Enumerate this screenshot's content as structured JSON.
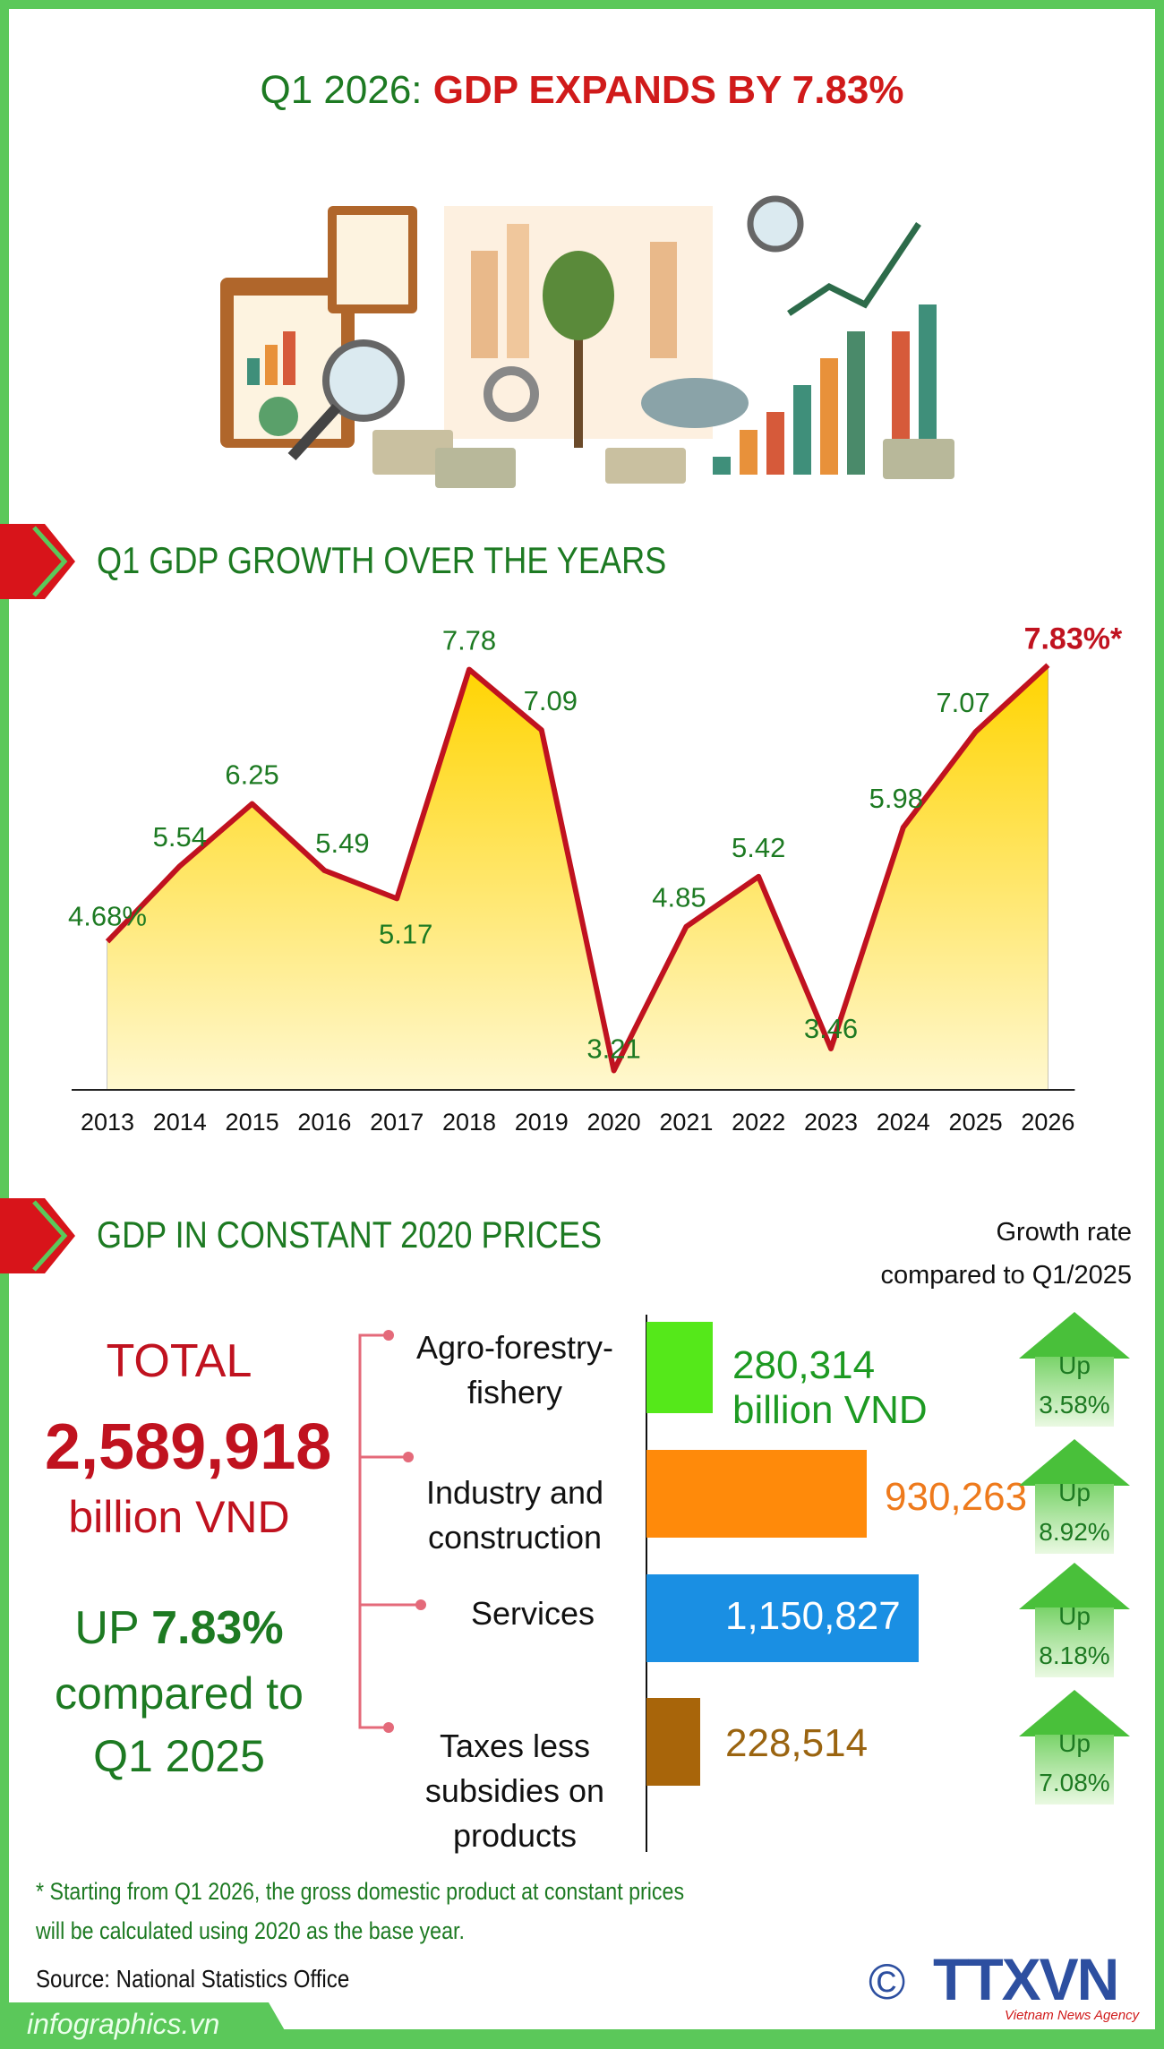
{
  "header": {
    "title_prefix": "Q1 2026: ",
    "title_main": "GDP EXPANDS BY 7.83%"
  },
  "section1": {
    "title": "Q1 GDP GROWTH OVER THE YEARS"
  },
  "chart_data": {
    "type": "area",
    "title": "Q1 GDP GROWTH OVER THE YEARS",
    "categories": [
      "2013",
      "2014",
      "2015",
      "2016",
      "2017",
      "2018",
      "2019",
      "2020",
      "2021",
      "2022",
      "2023",
      "2024",
      "2025",
      "2026"
    ],
    "values": [
      4.68,
      5.54,
      6.25,
      5.49,
      5.17,
      7.78,
      7.09,
      3.21,
      4.85,
      5.42,
      3.46,
      5.98,
      7.07,
      7.83
    ],
    "data_labels": [
      "4.68%",
      "5.54",
      "6.25",
      "5.49",
      "5.17",
      "7.78",
      "7.09",
      "3.21",
      "4.85",
      "5.42",
      "3.46",
      "5.98",
      "7.07",
      "7.83%*"
    ],
    "unit": "%",
    "grid": false,
    "line_color": "#c0121f",
    "fill_colors": [
      "#ffd400",
      "#fff6c0"
    ]
  },
  "section2": {
    "title": "GDP IN CONSTANT 2020 PRICES",
    "growth_header_1": "Growth rate",
    "growth_header_2": "compared to Q1/2025",
    "total_label": "TOTAL",
    "total_value": "2,589,918",
    "total_unit": "billion VND",
    "up_prefix": "UP ",
    "up_value": "7.83%",
    "compared_1": "compared to",
    "compared_2": "Q1 2025",
    "sectors": [
      {
        "label_1": "Agro-forestry-",
        "label_2": "fishery",
        "value": "280,314",
        "unit": "billion VND",
        "amount": 280314,
        "color": "#55e81a",
        "text_color": "#1d9a22",
        "growth_word": "Up",
        "growth": "3.58%"
      },
      {
        "label_1": "Industry and",
        "label_2": "construction",
        "value": "930,263",
        "amount": 930263,
        "color": "#ff8a0a",
        "text_color": "#ee7a1c",
        "growth_word": "Up",
        "growth": "8.92%"
      },
      {
        "label_1": "Services",
        "value": "1,150,827",
        "amount": 1150827,
        "color": "#1a8fe3",
        "text_color": "#ffffff",
        "growth_word": "Up",
        "growth": "8.18%"
      },
      {
        "label_1": "Taxes less",
        "label_2": "subsidies on",
        "label_3": "products",
        "value": "228,514",
        "amount": 228514,
        "color": "#a8650a",
        "text_color": "#9a6410",
        "growth_word": "Up",
        "growth": "7.08%"
      }
    ]
  },
  "footer": {
    "note_1": "* Starting from Q1 2026, the gross domestic product at constant prices",
    "note_2": "will be calculated using 2020 as the base year.",
    "source": "Source: National Statistics Office",
    "copyright": "©",
    "logo": "TTXVN",
    "logo_sub": "Vietnam News Agency",
    "site": "infographics.vn"
  }
}
